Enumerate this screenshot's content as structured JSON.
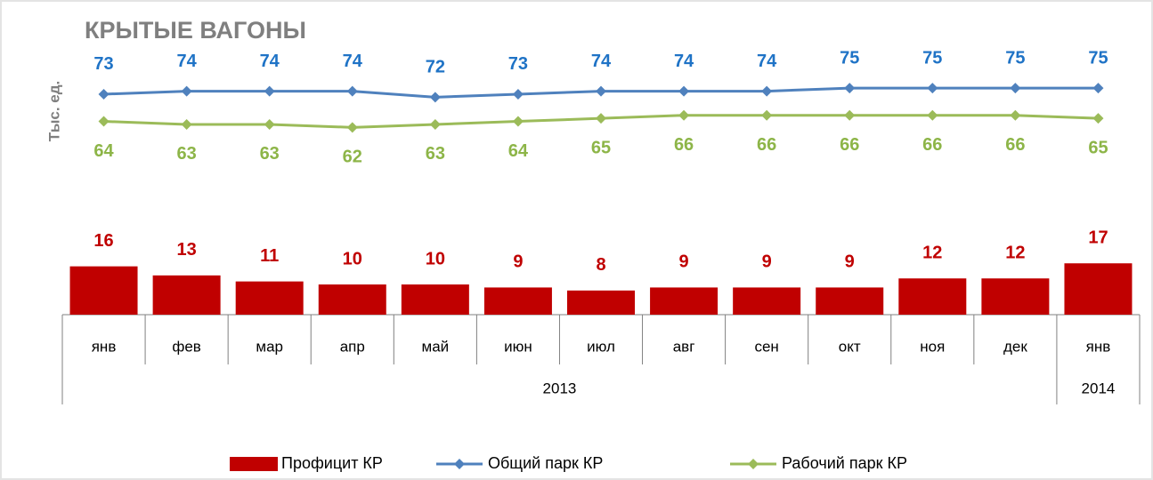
{
  "chart_data": {
    "type": "combo",
    "title": "КРЫТЫЕ ВАГОНЫ",
    "y_label": "Тыс. ед.",
    "categories": [
      "янв",
      "фев",
      "мар",
      "апр",
      "май",
      "июн",
      "июл",
      "авг",
      "сен",
      "окт",
      "ноя",
      "дек",
      "янв"
    ],
    "groups": [
      {
        "name": "2013",
        "count": 12
      },
      {
        "name": "2014",
        "count": 1
      }
    ],
    "ylim": [
      0,
      88
    ],
    "series": [
      {
        "name": "Профицит КР",
        "type": "bar",
        "color": "#c00000",
        "label_color": "#c00000",
        "label_position": "above",
        "values": [
          16,
          13,
          11,
          10,
          10,
          9,
          8,
          9,
          9,
          9,
          12,
          12,
          17
        ]
      },
      {
        "name": "Общий парк КР",
        "type": "line",
        "color": "#4f81bd",
        "label_color": "#1f73c6",
        "label_position": "above",
        "values": [
          73,
          74,
          74,
          74,
          72,
          73,
          74,
          74,
          74,
          75,
          75,
          75,
          75
        ]
      },
      {
        "name": "Рабочий парк КР",
        "type": "line",
        "color": "#9bbb59",
        "label_color": "#8db548",
        "label_position": "below",
        "values": [
          64,
          63,
          63,
          62,
          63,
          64,
          65,
          66,
          66,
          66,
          66,
          66,
          65
        ]
      }
    ],
    "legend": "bottom"
  }
}
